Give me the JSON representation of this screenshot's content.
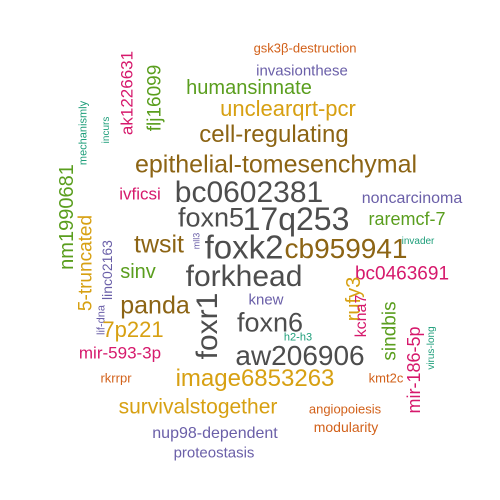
{
  "palette": {
    "gray": "#4d4d4d",
    "brown": "#8c6414",
    "orange": "#d7a012",
    "green": "#5a9e1e",
    "magenta": "#d6196c",
    "purple": "#6a5fa8",
    "teal": "#1e9e7a",
    "rust": "#d2611a"
  },
  "words": [
    {
      "text": "gsk3β-destruction",
      "color": "rust"
    },
    {
      "text": "ak1226631",
      "color": "magenta"
    },
    {
      "text": "flj16099",
      "color": "green"
    },
    {
      "text": "invasionthese",
      "color": "purple"
    },
    {
      "text": "humansinnate",
      "color": "green"
    },
    {
      "text": "mechanismly",
      "color": "teal"
    },
    {
      "text": "incurs",
      "color": "teal"
    },
    {
      "text": "unclearqrt-pcr",
      "color": "orange"
    },
    {
      "text": "cell-regulating",
      "color": "brown"
    },
    {
      "text": "epithelial-tomesenchymal",
      "color": "brown"
    },
    {
      "text": "nm1990681",
      "color": "green"
    },
    {
      "text": "bc0602381",
      "color": "gray"
    },
    {
      "text": "ivficsi",
      "color": "magenta"
    },
    {
      "text": "noncarcinoma",
      "color": "purple"
    },
    {
      "text": "5-truncated",
      "color": "orange"
    },
    {
      "text": "foxn5",
      "color": "gray"
    },
    {
      "text": "17q253",
      "color": "gray"
    },
    {
      "text": "raremcf-7",
      "color": "green"
    },
    {
      "text": "linc02163",
      "color": "purple"
    },
    {
      "text": "twsit",
      "color": "brown"
    },
    {
      "text": "mll3",
      "color": "purple"
    },
    {
      "text": "foxk2",
      "color": "gray"
    },
    {
      "text": "cb959941",
      "color": "brown"
    },
    {
      "text": "invader",
      "color": "teal"
    },
    {
      "text": "sinv",
      "color": "green"
    },
    {
      "text": "forkhead",
      "color": "gray"
    },
    {
      "text": "bc0463691",
      "color": "magenta"
    },
    {
      "text": "lif-dna",
      "color": "purple"
    },
    {
      "text": "panda",
      "color": "brown"
    },
    {
      "text": "foxr1",
      "color": "gray"
    },
    {
      "text": "knew",
      "color": "purple"
    },
    {
      "text": "rufy3",
      "color": "orange"
    },
    {
      "text": "kcna7",
      "color": "magenta"
    },
    {
      "text": "sindbis",
      "color": "green"
    },
    {
      "text": "virus-long",
      "color": "teal"
    },
    {
      "text": "7p221",
      "color": "orange"
    },
    {
      "text": "foxn6",
      "color": "gray"
    },
    {
      "text": "h2-h3",
      "color": "teal"
    },
    {
      "text": "mir-186-5p",
      "color": "magenta"
    },
    {
      "text": "mir-593-3p",
      "color": "magenta"
    },
    {
      "text": "aw206906",
      "color": "gray"
    },
    {
      "text": "rkrrpr",
      "color": "rust"
    },
    {
      "text": "image6853263",
      "color": "orange"
    },
    {
      "text": "kmt2c",
      "color": "rust"
    },
    {
      "text": "survivalstogether",
      "color": "orange"
    },
    {
      "text": "angiopoiesis",
      "color": "rust"
    },
    {
      "text": "modularity",
      "color": "rust"
    },
    {
      "text": "nup98-dependent",
      "color": "purple"
    },
    {
      "text": "proteostasis",
      "color": "purple"
    }
  ]
}
